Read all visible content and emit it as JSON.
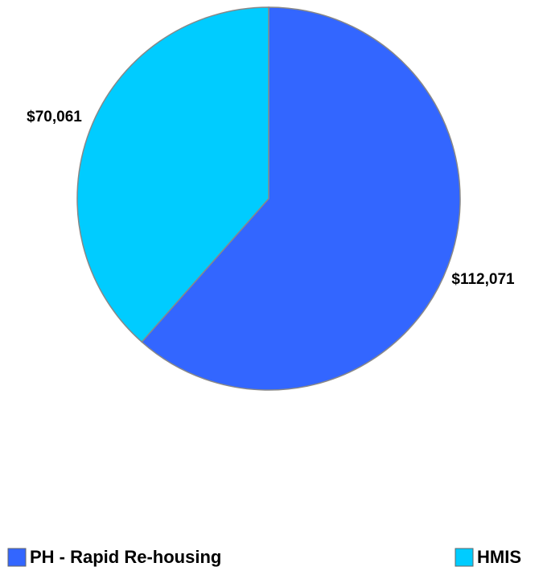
{
  "chart_data": {
    "type": "pie",
    "categories": [
      "PH - Rapid Re-housing",
      "HMIS"
    ],
    "values": [
      112071,
      70061
    ],
    "value_labels": [
      "$112,071",
      "$70,061"
    ],
    "colors": [
      "#3366ff",
      "#00ccff"
    ],
    "legend": "bottom"
  }
}
